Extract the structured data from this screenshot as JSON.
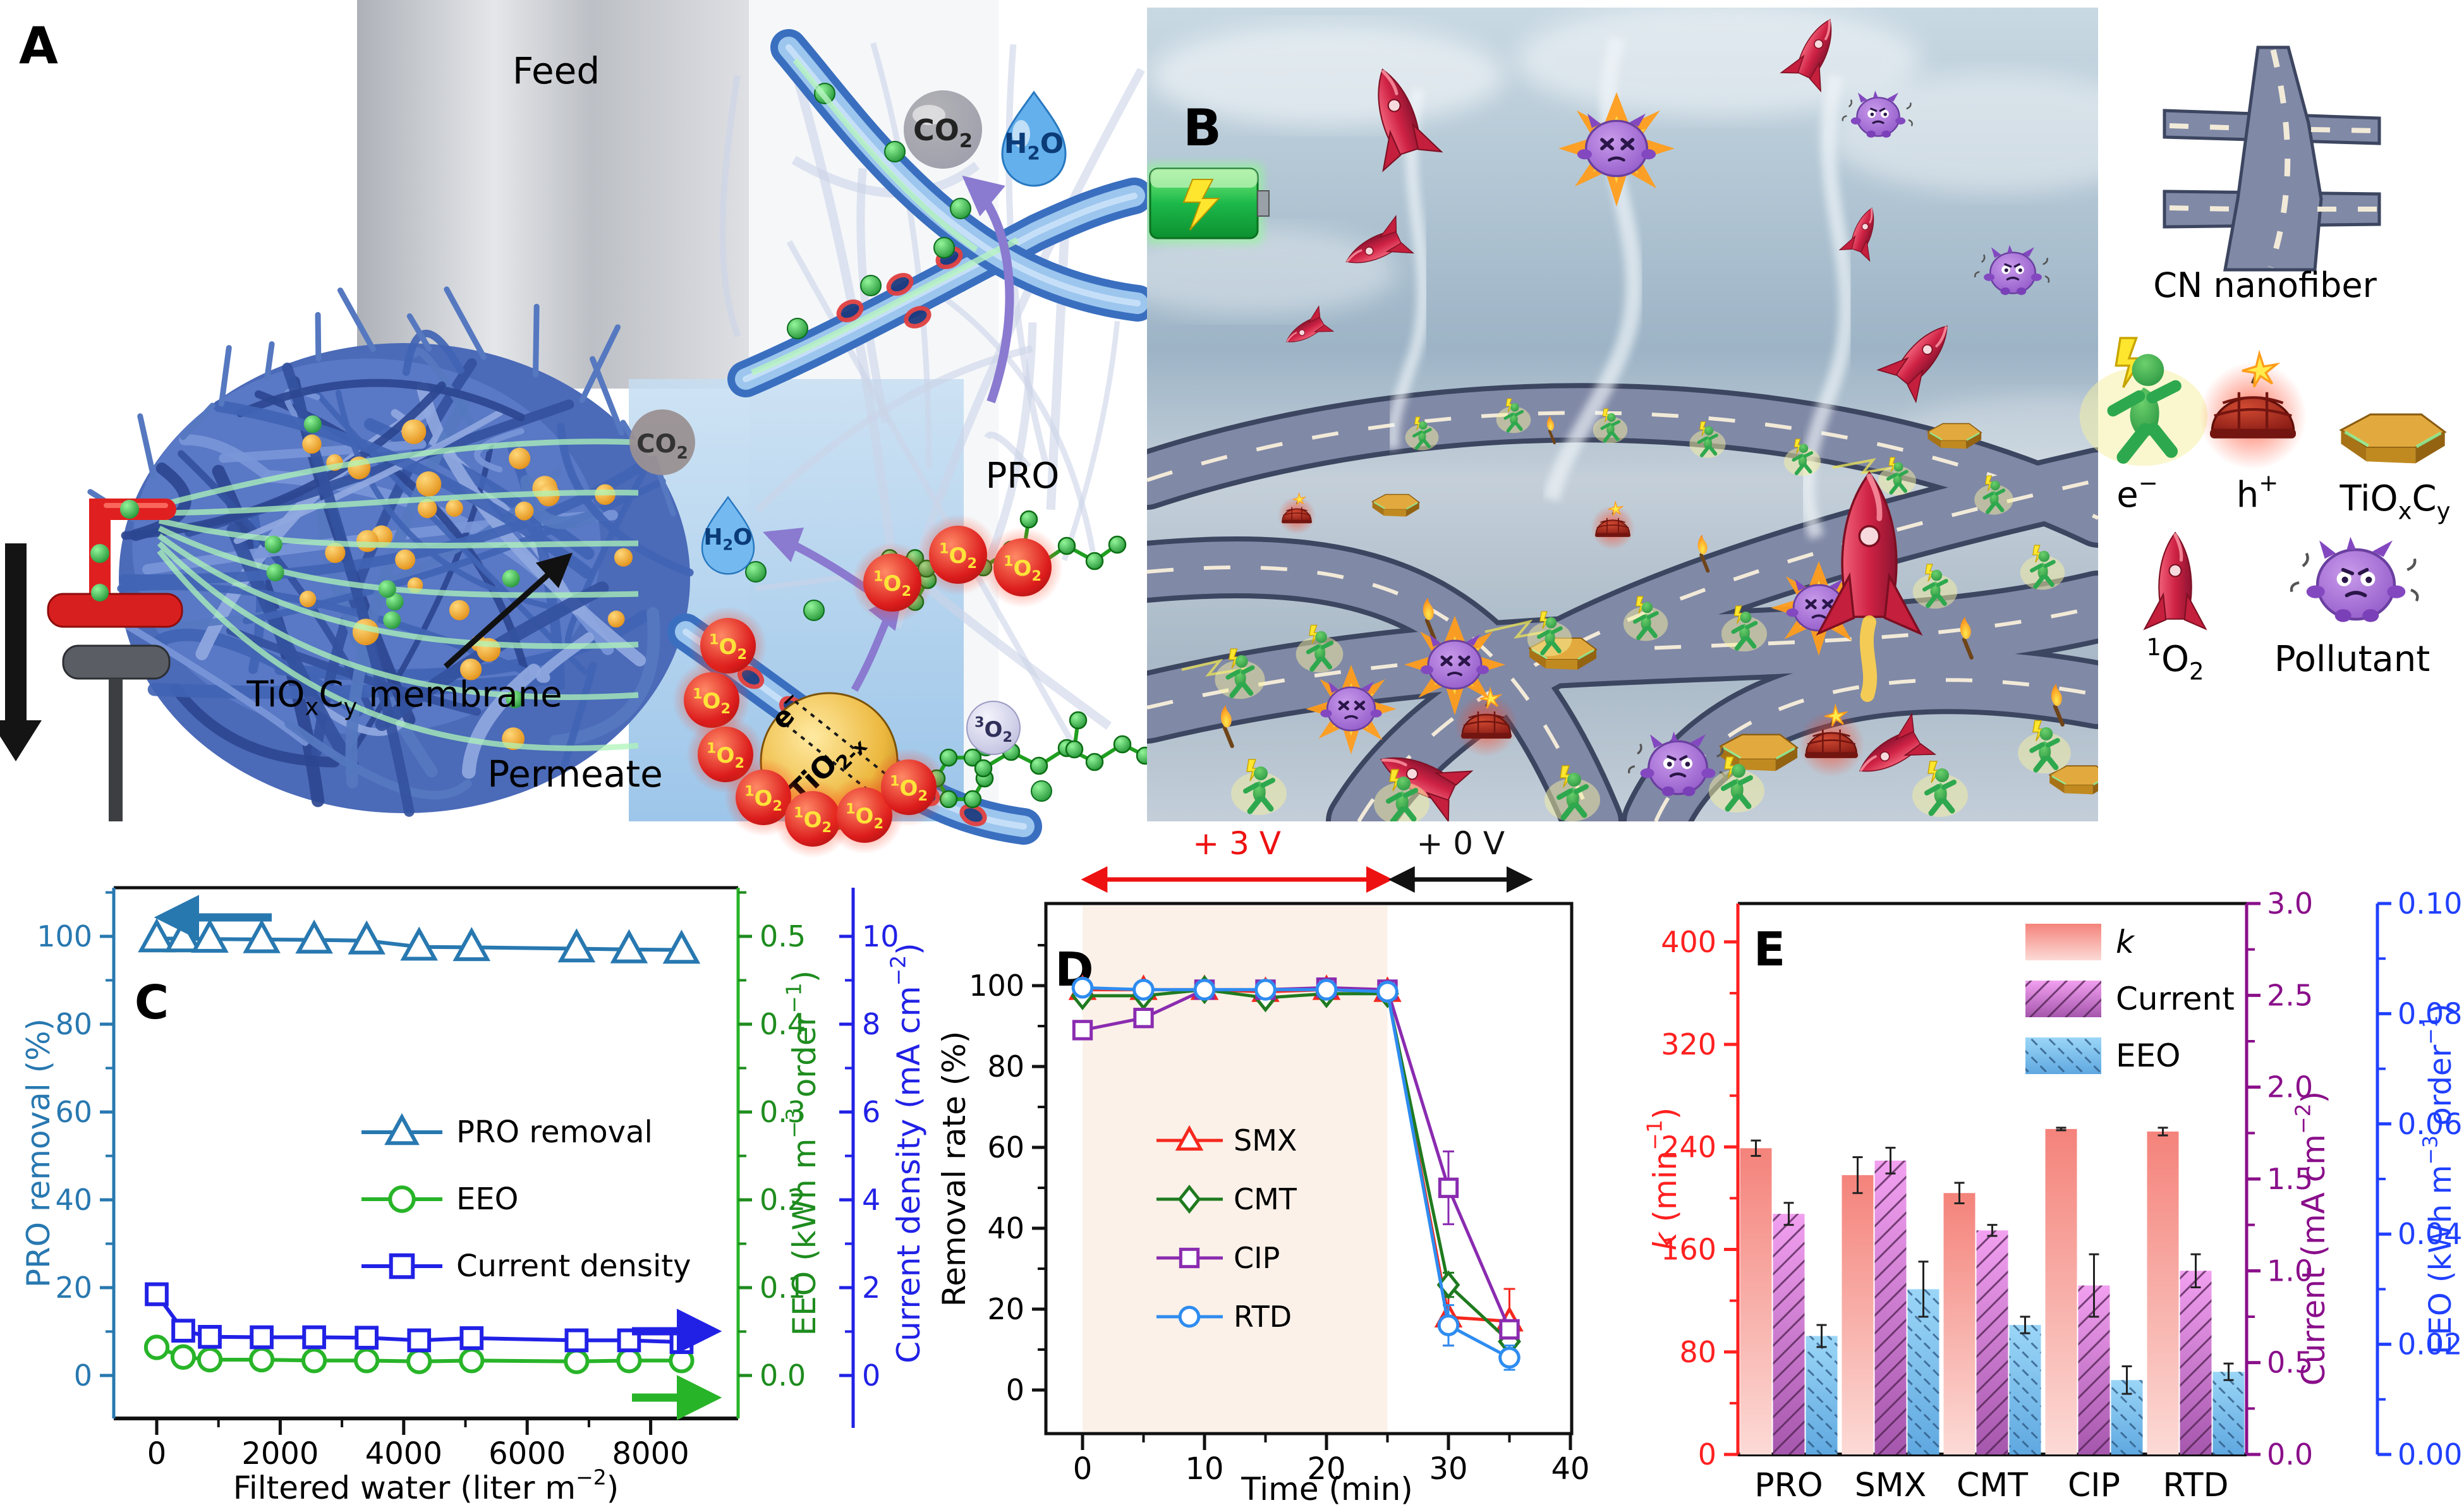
{
  "panelA": {
    "label": "A",
    "feed_label": "Feed",
    "permeate_label": "Permeate",
    "membrane_label": "TiO_{x}C_{y} membrane",
    "pro_label": "PRO",
    "co2_label": "CO_{2}",
    "h2o_label": "H_{2}O",
    "co2_small_label": "CO_{2}",
    "h2o_small_label": "H_{2}O",
    "triplet_oxygen_label": "^{3}O_{2}",
    "singlet_oxygen_label": "^{1}O_{2}",
    "catalyst_label": "TiO_{2-x}",
    "electron_label": "e^{−}",
    "hole_label": "h^{+}"
  },
  "panelB": {
    "label": "B"
  },
  "legendB": {
    "items": [
      {
        "icon": "road-icon",
        "label": "CN nanofiber"
      },
      {
        "icon": "electron-runner-icon",
        "label": "e^{−}"
      },
      {
        "icon": "hole-bomb-icon",
        "label": "h^{+}"
      },
      {
        "icon": "tioxcy-hexagon-icon",
        "label": "TiO_{x}C_{y}"
      },
      {
        "icon": "singlet-oxygen-rocket-icon",
        "label": "^{1}O_{2}"
      },
      {
        "icon": "pollutant-monster-icon",
        "label": "Pollutant"
      }
    ]
  },
  "chart_data": [
    {
      "id": "C",
      "type": "line",
      "panel_label": "C",
      "xlabel": "Filtered water (liter m^{−2})",
      "x_ticks": [
        0,
        2000,
        4000,
        6000,
        8000
      ],
      "xlim": [
        -700,
        9400
      ],
      "grid": false,
      "axes": {
        "left": {
          "label": "PRO removal (%)",
          "color": "#2878b0",
          "ticks": [
            0,
            20,
            40,
            60,
            80,
            100
          ],
          "lim": [
            0,
            100
          ],
          "decimals": 0
        },
        "right_eeo": {
          "label": "EEO (kWh m^{−3} order^{−1})",
          "color": "#1e8c1e",
          "ticks": [
            0,
            0.1,
            0.2,
            0.3,
            0.4,
            0.5
          ],
          "lim": [
            0,
            0.5
          ],
          "decimals": 1
        },
        "right_current": {
          "label": "Current density (mA cm^{−2})",
          "color": "#2121e6",
          "ticks": [
            0,
            2,
            4,
            6,
            8,
            10
          ],
          "lim": [
            0,
            10
          ],
          "decimals": 0
        }
      },
      "series": [
        {
          "name": "PRO removal",
          "axis": "left",
          "marker": "triangle",
          "color": "#2878b0",
          "x": [
            0,
            430,
            860,
            1700,
            2550,
            3400,
            4250,
            5100,
            6800,
            7650,
            8500
          ],
          "y": [
            99.5,
            99.5,
            99.4,
            99.3,
            99.2,
            99.0,
            97.6,
            97.5,
            97.2,
            97.0,
            96.9
          ],
          "yerr": [
            1.2,
            1.0,
            1.0,
            1.0,
            1.0,
            1.0,
            1.2,
            1.0,
            1.2,
            1.2,
            1.4
          ]
        },
        {
          "name": "EEO",
          "axis": "right_eeo",
          "marker": "circle",
          "color": "#28b428",
          "x": [
            0,
            430,
            860,
            1700,
            2550,
            3400,
            4250,
            5100,
            6800,
            7650,
            8500
          ],
          "y": [
            0.032,
            0.021,
            0.018,
            0.018,
            0.017,
            0.017,
            0.016,
            0.017,
            0.016,
            0.017,
            0.017
          ],
          "yerr": [
            0.002,
            0.0015,
            0.001,
            0.001,
            0.001,
            0.001,
            0.001,
            0.001,
            0.001,
            0.001,
            0.0015
          ]
        },
        {
          "name": "Current density",
          "axis": "right_current",
          "marker": "square",
          "color": "#2121e6",
          "x": [
            0,
            430,
            860,
            1700,
            2550,
            3400,
            4250,
            5100,
            6800,
            7650,
            8500
          ],
          "y": [
            1.85,
            1.02,
            0.88,
            0.87,
            0.87,
            0.86,
            0.8,
            0.85,
            0.8,
            0.8,
            0.76
          ],
          "yerr": [
            0.12,
            0.06,
            0.05,
            0.05,
            0.05,
            0.05,
            0.08,
            0.06,
            0.08,
            0.08,
            0.12
          ]
        }
      ]
    },
    {
      "id": "D",
      "type": "line",
      "panel_label": "D",
      "xlabel": "Time (min)",
      "ylabel": "Removal rate (%)",
      "x_ticks": [
        0,
        10,
        20,
        30,
        40
      ],
      "y_ticks": [
        0,
        20,
        40,
        60,
        80,
        100
      ],
      "xlim": [
        -3,
        40
      ],
      "ylim": [
        -10,
        120
      ],
      "shaded_region": {
        "x0": 0,
        "x1": 25,
        "color": "#fbf1e8"
      },
      "voltage_annotations": [
        {
          "text": "+ 3 V",
          "color": "#ee1111",
          "x_start": 0.3,
          "x_end": 25
        },
        {
          "text": "+ 0 V",
          "color": "#111111",
          "x_start": 25.5,
          "x_end": 36.5
        }
      ],
      "series": [
        {
          "name": "SMX",
          "marker": "triangle",
          "color": "#f5281e",
          "x": [
            0,
            5,
            10,
            15,
            20,
            25,
            30,
            35
          ],
          "y": [
            99,
            99,
            99,
            98.5,
            99,
            98.5,
            18,
            17
          ],
          "yerr": [
            1,
            0,
            0,
            0,
            0,
            0,
            7,
            8
          ]
        },
        {
          "name": "CMT",
          "marker": "diamond",
          "color": "#1f7a1f",
          "x": [
            0,
            5,
            10,
            15,
            20,
            25,
            30,
            35
          ],
          "y": [
            97.5,
            97.5,
            99,
            97,
            98,
            98,
            26,
            12
          ],
          "yerr": [
            1,
            1,
            0,
            1,
            0,
            0,
            3,
            3
          ]
        },
        {
          "name": "CIP",
          "marker": "square",
          "color": "#8a2bb0",
          "x": [
            0,
            5,
            10,
            15,
            20,
            25,
            30,
            35
          ],
          "y": [
            89,
            92,
            99,
            99,
            99.5,
            99,
            50,
            15
          ],
          "yerr": [
            2,
            1,
            0,
            0,
            0,
            0,
            9,
            2
          ]
        },
        {
          "name": "RTD",
          "marker": "circle",
          "color": "#2e8cf0",
          "x": [
            0,
            5,
            10,
            15,
            20,
            25,
            30,
            35
          ],
          "y": [
            99.5,
            99,
            99,
            99,
            99,
            98.5,
            16,
            8
          ],
          "yerr": [
            1,
            0,
            0,
            0,
            0,
            0,
            5,
            3
          ]
        }
      ]
    },
    {
      "id": "E",
      "type": "bar",
      "panel_label": "E",
      "categories": [
        "PRO",
        "SMX",
        "CMT",
        "CIP",
        "RTD"
      ],
      "axes": {
        "left": {
          "label": "~{k} (min^{−1})",
          "color": "#ff2020",
          "ticks": [
            0,
            80,
            160,
            240,
            320,
            400
          ],
          "lim": [
            0,
            430
          ],
          "decimals": 0
        },
        "right_current": {
          "label": "Current (mA cm^{−2})",
          "color": "#8a0f8a",
          "ticks": [
            0,
            0.5,
            1,
            1.5,
            2,
            2.5,
            3
          ],
          "lim": [
            0,
            3
          ],
          "decimals": 1
        },
        "right_eeo": {
          "label": "EEO (kWh m^{−3} order^{−1})",
          "color": "#2040ff",
          "ticks": [
            0,
            0.02,
            0.04,
            0.06,
            0.08,
            0.1
          ],
          "lim": [
            0,
            0.1
          ],
          "decimals": 2
        }
      },
      "series": [
        {
          "name": "~{k}",
          "axis": "left",
          "hatch": "none",
          "values": [
            239,
            218,
            204,
            254,
            252
          ],
          "errors": [
            6,
            14,
            8,
            1,
            3
          ]
        },
        {
          "name": "Current",
          "axis": "right_current",
          "hatch": "slash",
          "values": [
            1.31,
            1.6,
            1.22,
            0.92,
            1.0
          ],
          "errors": [
            0.06,
            0.07,
            0.03,
            0.17,
            0.09
          ]
        },
        {
          "name": "EEO",
          "axis": "right_eeo",
          "hatch": "backslash",
          "values": [
            0.0215,
            0.03,
            0.0235,
            0.0135,
            0.015
          ],
          "errors": [
            0.002,
            0.005,
            0.0015,
            0.0025,
            0.0015
          ]
        }
      ]
    }
  ]
}
